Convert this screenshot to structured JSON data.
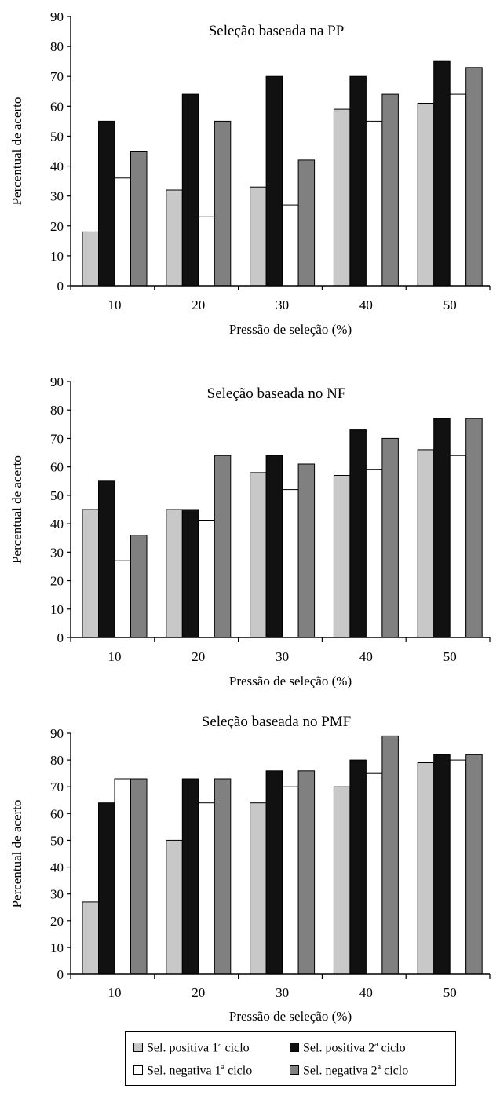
{
  "chart_data": [
    {
      "type": "bar",
      "title": "Seleção baseada na PP",
      "xlabel": "Pressão de seleção (%)",
      "ylabel": "Percentual de acerto",
      "ylim": [
        0,
        90
      ],
      "yticks": [
        "0",
        "10",
        "20",
        "30",
        "40",
        "50",
        "60",
        "70",
        "80",
        "90"
      ],
      "categories": [
        "10",
        "20",
        "30",
        "40",
        "50"
      ],
      "series": [
        {
          "name": "Sel. positiva 1ª ciclo",
          "values": [
            18,
            32,
            33,
            59,
            61
          ]
        },
        {
          "name": "Sel. positiva 2ª ciclo",
          "values": [
            55,
            64,
            70,
            70,
            75
          ]
        },
        {
          "name": "Sel. negativa 1ª ciclo",
          "values": [
            36,
            23,
            27,
            55,
            64
          ]
        },
        {
          "name": "Sel. negativa 2ª ciclo",
          "values": [
            45,
            55,
            42,
            64,
            73
          ]
        }
      ]
    },
    {
      "type": "bar",
      "title": "Seleção baseada no NF",
      "xlabel": "Pressão de seleção (%)",
      "ylabel": "Percentual de acerto",
      "ylim": [
        0,
        90
      ],
      "yticks": [
        "0",
        "10",
        "20",
        "30",
        "40",
        "50",
        "60",
        "70",
        "80",
        "90"
      ],
      "categories": [
        "10",
        "20",
        "30",
        "40",
        "50"
      ],
      "series": [
        {
          "name": "Sel. positiva 1ª ciclo",
          "values": [
            45,
            45,
            58,
            57,
            66
          ]
        },
        {
          "name": "Sel. positiva 2ª ciclo",
          "values": [
            55,
            45,
            64,
            73,
            77
          ]
        },
        {
          "name": "Sel. negativa 1ª ciclo",
          "values": [
            27,
            41,
            52,
            59,
            64
          ]
        },
        {
          "name": "Sel. negativa 2ª ciclo",
          "values": [
            36,
            64,
            61,
            70,
            77
          ]
        }
      ]
    },
    {
      "type": "bar",
      "title": "Seleção baseada no PMF",
      "xlabel": "Pressão de seleção (%)",
      "ylabel": "Percentual de acerto",
      "ylim": [
        0,
        90
      ],
      "yticks": [
        "0",
        "10",
        "20",
        "30",
        "40",
        "50",
        "60",
        "70",
        "80",
        "90"
      ],
      "categories": [
        "10",
        "20",
        "30",
        "40",
        "50"
      ],
      "series": [
        {
          "name": "Sel. positiva 1ª ciclo",
          "values": [
            27,
            50,
            64,
            70,
            79
          ]
        },
        {
          "name": "Sel. positiva 2ª ciclo",
          "values": [
            64,
            73,
            76,
            80,
            82
          ]
        },
        {
          "name": "Sel. negativa 1ª ciclo",
          "values": [
            73,
            64,
            70,
            75,
            80
          ]
        },
        {
          "name": "Sel. negativa 2ª ciclo",
          "values": [
            73,
            73,
            76,
            89,
            82
          ]
        }
      ]
    }
  ],
  "legend": {
    "items": [
      {
        "prefix": "Sel. positiva 1",
        "sup": "a",
        "suffix": " ciclo",
        "color": "#c8c8c8"
      },
      {
        "prefix": "Sel. positiva 2",
        "sup": "a",
        "suffix": " ciclo",
        "color": "#111111"
      },
      {
        "prefix": "Sel. negativa 1",
        "sup": "a",
        "suffix": " ciclo",
        "color": "#ffffff"
      },
      {
        "prefix": "Sel. negativa 2",
        "sup": "a",
        "suffix": " ciclo",
        "color": "#808080"
      }
    ]
  },
  "colors": {
    "series": [
      "#c8c8c8",
      "#111111",
      "#ffffff",
      "#808080"
    ],
    "axis": "#000000"
  }
}
